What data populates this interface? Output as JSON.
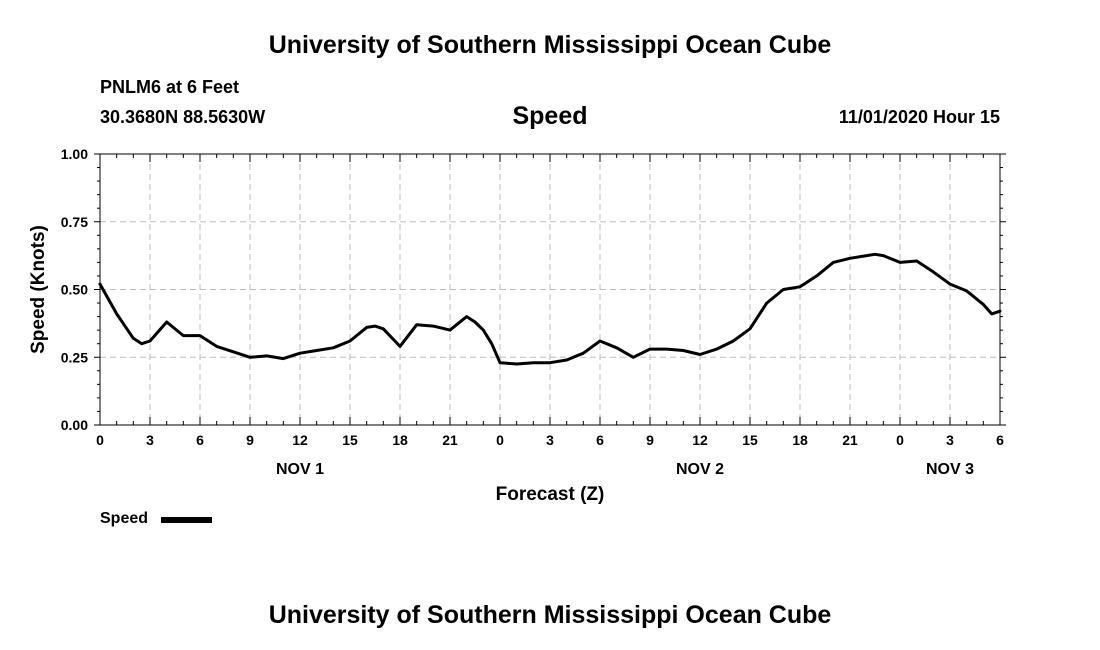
{
  "header": {
    "title": "University of Southern Mississippi Ocean Cube",
    "station": "PNLM6 at 6 Feet",
    "coords": "30.3680N 88.5630W",
    "subtitle": "Speed",
    "datetime": "11/01/2020 Hour 15"
  },
  "footer": {
    "title": "University of Southern Mississippi Ocean Cube"
  },
  "chart_data": {
    "type": "line",
    "title": "Speed",
    "xlabel": "Forecast (Z)",
    "ylabel": "Speed (Knots)",
    "xlim": [
      0,
      54
    ],
    "ylim": [
      0,
      1
    ],
    "yticks": [
      "0.00",
      "0.25",
      "0.50",
      "0.75",
      "1.00"
    ],
    "xticks": [
      "0",
      "3",
      "6",
      "9",
      "12",
      "15",
      "18",
      "21",
      "0",
      "3",
      "6",
      "9",
      "12",
      "15",
      "18",
      "21",
      "0",
      "3",
      "6"
    ],
    "day_labels": [
      {
        "hour": 12,
        "label": "NOV 1"
      },
      {
        "hour": 36,
        "label": "NOV 2"
      },
      {
        "hour": 51,
        "label": "NOV 3"
      }
    ],
    "grid": true,
    "legend": [
      {
        "name": "Speed",
        "color": "#000000"
      }
    ],
    "series": [
      {
        "name": "Speed",
        "color": "#000000",
        "x": [
          0,
          1,
          2,
          2.5,
          3,
          4,
          5,
          6,
          7,
          8,
          9,
          10,
          11,
          12,
          13,
          14,
          15,
          16,
          16.5,
          17,
          18,
          19,
          20,
          21,
          22,
          22.5,
          23,
          23.5,
          24,
          25,
          26,
          27,
          28,
          29,
          30,
          31,
          32,
          33,
          34,
          35,
          36,
          37,
          38,
          39,
          40,
          41,
          42,
          43,
          44,
          45,
          46,
          46.5,
          47,
          48,
          49,
          50,
          51,
          52,
          53,
          53.5,
          54
        ],
        "y": [
          0.52,
          0.41,
          0.32,
          0.3,
          0.31,
          0.38,
          0.33,
          0.33,
          0.29,
          0.27,
          0.25,
          0.255,
          0.245,
          0.265,
          0.275,
          0.285,
          0.31,
          0.36,
          0.365,
          0.355,
          0.29,
          0.37,
          0.365,
          0.35,
          0.4,
          0.38,
          0.35,
          0.3,
          0.23,
          0.225,
          0.23,
          0.23,
          0.24,
          0.265,
          0.31,
          0.285,
          0.25,
          0.28,
          0.28,
          0.275,
          0.26,
          0.28,
          0.31,
          0.355,
          0.45,
          0.5,
          0.51,
          0.55,
          0.6,
          0.615,
          0.625,
          0.63,
          0.625,
          0.6,
          0.605,
          0.565,
          0.52,
          0.495,
          0.445,
          0.41,
          0.42
        ]
      }
    ]
  }
}
